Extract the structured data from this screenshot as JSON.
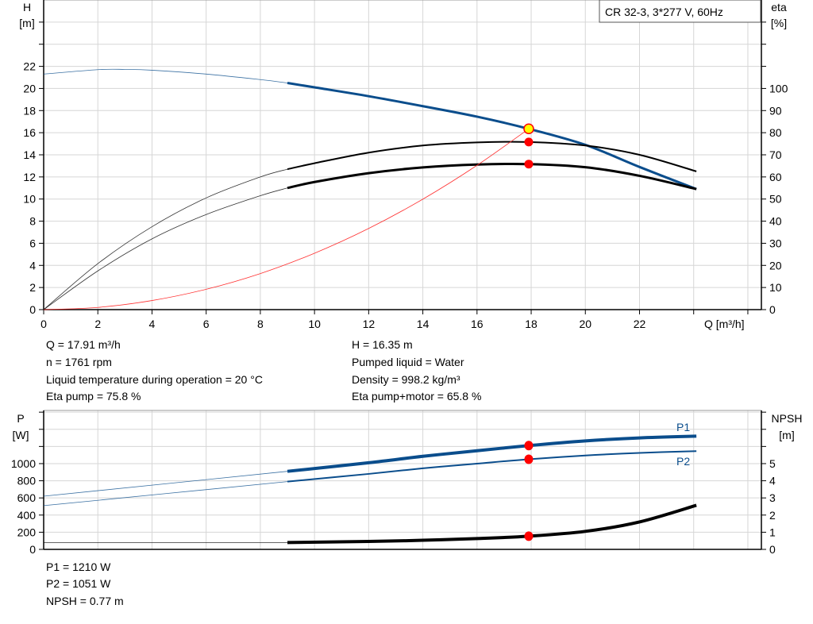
{
  "chart_data": [
    {
      "type": "line",
      "title_box": "CR 32-3, 3*277 V, 60Hz",
      "xlabel": "Q [m³/h]",
      "ylabel_left": [
        "H",
        "[m]"
      ],
      "ylabel_right": [
        "eta",
        "[%]"
      ],
      "xlim": [
        0,
        26.5
      ],
      "ylim_left": [
        0,
        28
      ],
      "ylim_right": [
        0,
        140
      ],
      "xticks": [
        0,
        2,
        4,
        6,
        8,
        10,
        12,
        14,
        16,
        18,
        20,
        22
      ],
      "yticks_left": [
        0,
        2,
        4,
        6,
        8,
        10,
        12,
        14,
        16,
        18,
        20,
        22
      ],
      "yticks_right": [
        0,
        10,
        20,
        30,
        40,
        50,
        60,
        70,
        80,
        90,
        100
      ],
      "grid": true,
      "series": [
        {
          "key": "head",
          "axis": "left",
          "color": "#0a4d8c",
          "thick_from": 9,
          "x": [
            0,
            2,
            3,
            4,
            6,
            8,
            9,
            10,
            12,
            14,
            16,
            17.91,
            20,
            22,
            24.1
          ],
          "y": [
            21.3,
            21.7,
            21.72,
            21.65,
            21.3,
            20.8,
            20.5,
            20.1,
            19.3,
            18.4,
            17.45,
            16.35,
            14.9,
            12.9,
            10.9
          ]
        },
        {
          "key": "eta_pump",
          "axis": "right",
          "color": "#000000",
          "thick_from": 9,
          "x": [
            0,
            2,
            4,
            6,
            8,
            9,
            10,
            12,
            14,
            16,
            17.91,
            20,
            22,
            24.1
          ],
          "y": [
            0,
            20.8,
            37.5,
            50.5,
            60,
            63.5,
            66.2,
            71,
            74.2,
            75.6,
            75.8,
            74.2,
            70,
            62.5
          ]
        },
        {
          "key": "eta_pump_motor",
          "axis": "right",
          "color": "#000000",
          "thick_from": 9,
          "x": [
            0,
            2,
            4,
            6,
            8,
            9,
            10,
            12,
            14,
            16,
            17.91,
            20,
            22,
            24.1
          ],
          "y": [
            0,
            17.5,
            32,
            43,
            51.5,
            55,
            57.7,
            61.7,
            64.3,
            65.6,
            65.8,
            64.4,
            60.5,
            54.5
          ]
        },
        {
          "key": "system",
          "axis": "left",
          "color": "#ff3030",
          "x": [
            0,
            2,
            4,
            6,
            8,
            10,
            12,
            14,
            16,
            17.91
          ],
          "y": [
            0,
            0.2,
            0.82,
            1.84,
            3.26,
            5.1,
            7.34,
            9.99,
            13.05,
            16.35
          ]
        }
      ],
      "duty_point": {
        "Q": 17.91,
        "H": 16.35,
        "eta_pump": 75.8,
        "eta_pump_motor": 65.8
      }
    },
    {
      "type": "line",
      "ylabel_left": [
        "P",
        "[W]"
      ],
      "ylabel_right": [
        "NPSH",
        "[m]"
      ],
      "xlim": [
        0,
        26.5
      ],
      "ylim_left": [
        0,
        1620
      ],
      "ylim_right": [
        0,
        8.1
      ],
      "yticks_left": [
        0,
        200,
        400,
        600,
        800,
        1000
      ],
      "yticks_right": [
        0,
        1,
        2,
        3,
        4,
        5
      ],
      "grid": true,
      "series": [
        {
          "name": "P1",
          "axis": "left",
          "color": "#0a4d8c",
          "thick_from": 9,
          "x": [
            0,
            9,
            12,
            14,
            16,
            17.91,
            20,
            22,
            24.1
          ],
          "y": [
            620,
            910,
            1010,
            1085,
            1150,
            1210,
            1265,
            1300,
            1320
          ]
        },
        {
          "name": "P2",
          "axis": "left",
          "color": "#0a4d8c",
          "thick_from": 9,
          "x": [
            0,
            9,
            12,
            14,
            16,
            17.91,
            20,
            22,
            24.1
          ],
          "y": [
            510,
            790,
            880,
            945,
            1000,
            1051,
            1095,
            1125,
            1145
          ]
        },
        {
          "key": "npsh",
          "axis": "right",
          "color": "#000000",
          "thick_from": 9,
          "x": [
            0,
            9,
            12,
            14,
            16,
            17.91,
            20,
            22,
            24.1
          ],
          "y": [
            0.4,
            0.4,
            0.46,
            0.53,
            0.63,
            0.77,
            1.05,
            1.6,
            2.57
          ]
        }
      ],
      "duty_point": {
        "Q": 17.91,
        "P1": 1210,
        "P2": 1051,
        "NPSH": 0.77
      }
    }
  ],
  "info_top": {
    "left": [
      "Q = 17.91 m³/h",
      "n = 1761 rpm",
      "Liquid temperature during operation = 20 °C",
      "Eta pump = 75.8 %"
    ],
    "right": [
      "H = 16.35 m",
      "Pumped liquid = Water",
      "Density = 998.2 kg/m³",
      "Eta pump+motor = 65.8 %"
    ]
  },
  "info_bottom": [
    "P1 = 1210 W",
    "P2 = 1051 W",
    "NPSH = 0.77 m"
  ]
}
